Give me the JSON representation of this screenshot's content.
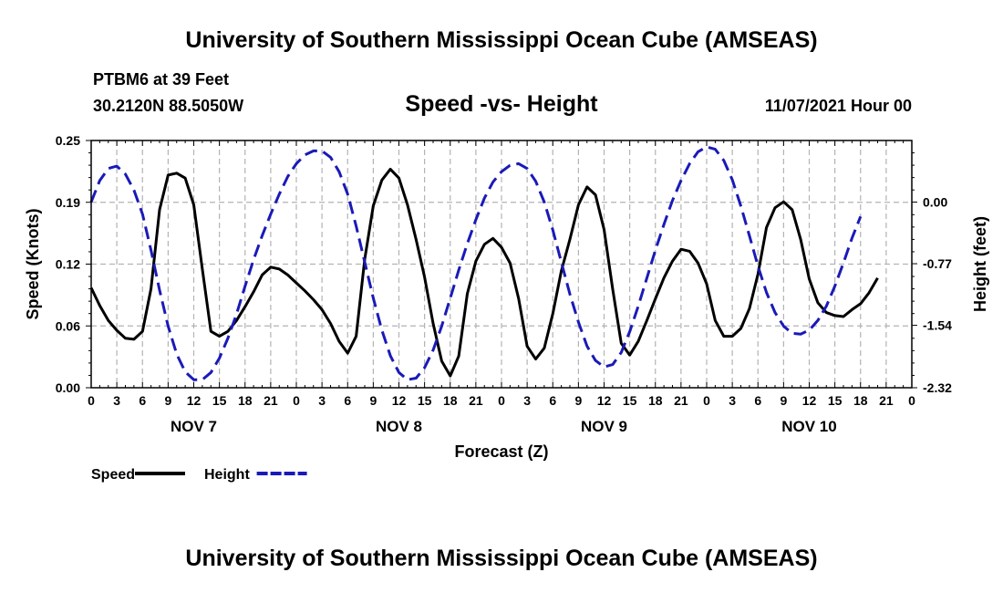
{
  "header": {
    "title": "University of Southern Mississippi Ocean Cube (AMSEAS)",
    "station": "PTBM6 at 39 Feet",
    "coords": "30.2120N  88.5050W",
    "subtitle": "Speed -vs- Height",
    "datetime": "11/07/2021 Hour 00"
  },
  "footer": {
    "title": "University of Southern Mississippi Ocean Cube (AMSEAS)"
  },
  "chart_data": {
    "type": "line",
    "xlabel": "Forecast (Z)",
    "ylabel_left": "Speed (Knots)",
    "ylabel_right": "Height (feet)",
    "x_range_hours": [
      0,
      96
    ],
    "x_tick_step_hours": 3,
    "x_tick_labels": [
      "0",
      "3",
      "6",
      "9",
      "12",
      "15",
      "18",
      "21",
      "0",
      "3",
      "6",
      "9",
      "12",
      "15",
      "18",
      "21",
      "0",
      "3",
      "6",
      "9",
      "12",
      "15",
      "18",
      "21",
      "0",
      "3",
      "6",
      "9",
      "12",
      "15",
      "18",
      "21",
      "0"
    ],
    "day_labels": [
      {
        "label": "NOV 7",
        "hour": 12
      },
      {
        "label": "NOV 8",
        "hour": 36
      },
      {
        "label": "NOV 9",
        "hour": 60
      },
      {
        "label": "NOV 10",
        "hour": 84
      }
    ],
    "y_left": {
      "min": 0.0,
      "max": 0.25,
      "ticks": [
        0.0,
        0.0625,
        0.125,
        0.1875,
        0.25
      ],
      "tick_labels": [
        "0.00",
        "0.06",
        "0.12",
        "0.19",
        "0.25"
      ]
    },
    "y_right": {
      "min": -2.32,
      "max": 0.77,
      "ticks": [
        -2.32,
        -1.54,
        -0.77,
        0.0
      ],
      "tick_labels": [
        "-2.32",
        "-1.54",
        "-0.77",
        "0.00"
      ]
    },
    "grid": true,
    "legend_position": "bottom-left",
    "series": [
      {
        "name": "Speed",
        "axis": "left",
        "color": "#000000",
        "dash": "solid",
        "points": [
          [
            0,
            0.101
          ],
          [
            1,
            0.083
          ],
          [
            2,
            0.068
          ],
          [
            3,
            0.058
          ],
          [
            4,
            0.05
          ],
          [
            5,
            0.049
          ],
          [
            6,
            0.057
          ],
          [
            7,
            0.1
          ],
          [
            8,
            0.18
          ],
          [
            9,
            0.215
          ],
          [
            10,
            0.217
          ],
          [
            11,
            0.212
          ],
          [
            12,
            0.185
          ],
          [
            13,
            0.12
          ],
          [
            14,
            0.057
          ],
          [
            15,
            0.052
          ],
          [
            16,
            0.057
          ],
          [
            17,
            0.068
          ],
          [
            18,
            0.082
          ],
          [
            19,
            0.097
          ],
          [
            20,
            0.114
          ],
          [
            21,
            0.122
          ],
          [
            22,
            0.12
          ],
          [
            23,
            0.114
          ],
          [
            24,
            0.106
          ],
          [
            25,
            0.098
          ],
          [
            26,
            0.089
          ],
          [
            27,
            0.079
          ],
          [
            28,
            0.065
          ],
          [
            29,
            0.047
          ],
          [
            30,
            0.035
          ],
          [
            31,
            0.052
          ],
          [
            32,
            0.13
          ],
          [
            33,
            0.184
          ],
          [
            34,
            0.21
          ],
          [
            35,
            0.221
          ],
          [
            36,
            0.212
          ],
          [
            37,
            0.185
          ],
          [
            38,
            0.15
          ],
          [
            39,
            0.112
          ],
          [
            40,
            0.065
          ],
          [
            41,
            0.027
          ],
          [
            42,
            0.012
          ],
          [
            43,
            0.032
          ],
          [
            44,
            0.095
          ],
          [
            45,
            0.128
          ],
          [
            46,
            0.145
          ],
          [
            47,
            0.151
          ],
          [
            48,
            0.142
          ],
          [
            49,
            0.126
          ],
          [
            50,
            0.09
          ],
          [
            51,
            0.042
          ],
          [
            52,
            0.029
          ],
          [
            53,
            0.04
          ],
          [
            54,
            0.075
          ],
          [
            55,
            0.118
          ],
          [
            56,
            0.15
          ],
          [
            57,
            0.185
          ],
          [
            58,
            0.203
          ],
          [
            59,
            0.195
          ],
          [
            60,
            0.16
          ],
          [
            61,
            0.1
          ],
          [
            62,
            0.045
          ],
          [
            63,
            0.033
          ],
          [
            64,
            0.047
          ],
          [
            65,
            0.068
          ],
          [
            66,
            0.09
          ],
          [
            67,
            0.111
          ],
          [
            68,
            0.128
          ],
          [
            69,
            0.14
          ],
          [
            70,
            0.138
          ],
          [
            71,
            0.126
          ],
          [
            72,
            0.105
          ],
          [
            73,
            0.068
          ],
          [
            74,
            0.052
          ],
          [
            75,
            0.052
          ],
          [
            76,
            0.06
          ],
          [
            77,
            0.08
          ],
          [
            78,
            0.115
          ],
          [
            79,
            0.162
          ],
          [
            80,
            0.182
          ],
          [
            81,
            0.188
          ],
          [
            82,
            0.18
          ],
          [
            83,
            0.15
          ],
          [
            84,
            0.11
          ],
          [
            85,
            0.086
          ],
          [
            86,
            0.076
          ],
          [
            87,
            0.073
          ],
          [
            88,
            0.072
          ],
          [
            89,
            0.079
          ],
          [
            90,
            0.085
          ],
          [
            91,
            0.096
          ],
          [
            92,
            0.111
          ]
        ]
      },
      {
        "name": "Height",
        "axis": "right",
        "color": "#1a1ab8",
        "dash": "dashed",
        "points": [
          [
            0,
            0.0
          ],
          [
            1,
            0.27
          ],
          [
            2,
            0.42
          ],
          [
            3,
            0.45
          ],
          [
            4,
            0.35
          ],
          [
            5,
            0.15
          ],
          [
            6,
            -0.15
          ],
          [
            7,
            -0.6
          ],
          [
            8,
            -1.1
          ],
          [
            9,
            -1.55
          ],
          [
            10,
            -1.9
          ],
          [
            11,
            -2.12
          ],
          [
            12,
            -2.22
          ],
          [
            13,
            -2.22
          ],
          [
            14,
            -2.13
          ],
          [
            15,
            -1.95
          ],
          [
            16,
            -1.7
          ],
          [
            17,
            -1.4
          ],
          [
            18,
            -1.05
          ],
          [
            19,
            -0.72
          ],
          [
            20,
            -0.42
          ],
          [
            21,
            -0.15
          ],
          [
            22,
            0.1
          ],
          [
            23,
            0.32
          ],
          [
            24,
            0.48
          ],
          [
            25,
            0.59
          ],
          [
            26,
            0.64
          ],
          [
            27,
            0.64
          ],
          [
            28,
            0.56
          ],
          [
            29,
            0.38
          ],
          [
            30,
            0.1
          ],
          [
            31,
            -0.3
          ],
          [
            32,
            -0.75
          ],
          [
            33,
            -1.2
          ],
          [
            34,
            -1.6
          ],
          [
            35,
            -1.92
          ],
          [
            36,
            -2.13
          ],
          [
            37,
            -2.22
          ],
          [
            38,
            -2.2
          ],
          [
            39,
            -2.07
          ],
          [
            40,
            -1.85
          ],
          [
            41,
            -1.55
          ],
          [
            42,
            -1.2
          ],
          [
            43,
            -0.85
          ],
          [
            44,
            -0.52
          ],
          [
            45,
            -0.22
          ],
          [
            46,
            0.05
          ],
          [
            47,
            0.25
          ],
          [
            48,
            0.38
          ],
          [
            49,
            0.46
          ],
          [
            50,
            0.48
          ],
          [
            51,
            0.42
          ],
          [
            52,
            0.26
          ],
          [
            53,
            0.0
          ],
          [
            54,
            -0.35
          ],
          [
            55,
            -0.75
          ],
          [
            56,
            -1.15
          ],
          [
            57,
            -1.5
          ],
          [
            58,
            -1.8
          ],
          [
            59,
            -1.98
          ],
          [
            60,
            -2.06
          ],
          [
            61,
            -2.03
          ],
          [
            62,
            -1.88
          ],
          [
            63,
            -1.62
          ],
          [
            64,
            -1.3
          ],
          [
            65,
            -0.95
          ],
          [
            66,
            -0.6
          ],
          [
            67,
            -0.28
          ],
          [
            68,
            0.02
          ],
          [
            69,
            0.27
          ],
          [
            70,
            0.48
          ],
          [
            71,
            0.63
          ],
          [
            72,
            0.69
          ],
          [
            73,
            0.66
          ],
          [
            74,
            0.52
          ],
          [
            75,
            0.28
          ],
          [
            76,
            -0.05
          ],
          [
            77,
            -0.42
          ],
          [
            78,
            -0.8
          ],
          [
            79,
            -1.13
          ],
          [
            80,
            -1.38
          ],
          [
            81,
            -1.55
          ],
          [
            82,
            -1.64
          ],
          [
            83,
            -1.65
          ],
          [
            84,
            -1.6
          ],
          [
            85,
            -1.48
          ],
          [
            86,
            -1.3
          ],
          [
            87,
            -1.05
          ],
          [
            88,
            -0.76
          ],
          [
            89,
            -0.45
          ],
          [
            90,
            -0.18
          ]
        ]
      }
    ]
  }
}
